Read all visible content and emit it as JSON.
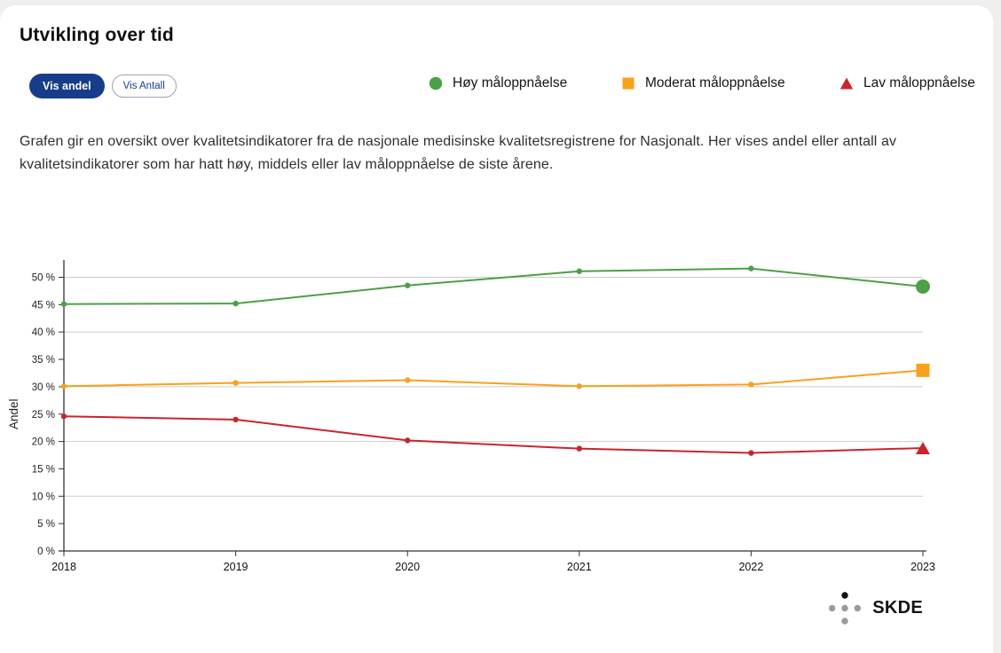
{
  "page": {
    "title": "Utvikling over tid"
  },
  "colors": {
    "accent_blue": "#173d8a",
    "grid": "#cccccc",
    "axis": "#333333"
  },
  "controls": {
    "show_share_label": "Vis andel",
    "show_count_label": "Vis Antall"
  },
  "legend": {
    "items": [
      {
        "label": "Høy måloppnåelse",
        "marker": "circle",
        "color": "#4ca046"
      },
      {
        "label": "Moderat måloppnåelse",
        "marker": "square",
        "color": "#f8a11b"
      },
      {
        "label": "Lav måloppnåelse",
        "marker": "triangle",
        "color": "#c9242f"
      }
    ]
  },
  "description": "Grafen gir en oversikt over kvalitetsindikatorer fra de nasjonale medisinske kvalitetsregistrene for Nasjonalt. Her vises andel eller antall av kvalitetsindikatorer som har hatt høy, middels eller lav måloppnåelse de siste årene.",
  "logo": {
    "text": "SKDE"
  },
  "chart_data": {
    "type": "line",
    "x": [
      2018,
      2019,
      2020,
      2021,
      2022,
      2023
    ],
    "series": [
      {
        "name": "Høy måloppnåelse",
        "color": "#4ca046",
        "marker": "circle",
        "values": [
          45.1,
          45.2,
          48.5,
          51.1,
          51.6,
          48.3
        ]
      },
      {
        "name": "Moderat måloppnåelse",
        "color": "#f8a11b",
        "marker": "square",
        "values": [
          30.1,
          30.7,
          31.2,
          30.1,
          30.4,
          33.0
        ]
      },
      {
        "name": "Lav måloppnåelse",
        "color": "#c9242f",
        "marker": "triangle",
        "values": [
          24.6,
          24.0,
          20.2,
          18.7,
          17.9,
          18.8
        ]
      }
    ],
    "xlabel": "",
    "ylabel": "Andel",
    "ylim": [
      0,
      52
    ],
    "ytick_step": 5,
    "ytick_suffix": " %",
    "grid_step": 10,
    "grid": true,
    "legend_position": "top"
  }
}
